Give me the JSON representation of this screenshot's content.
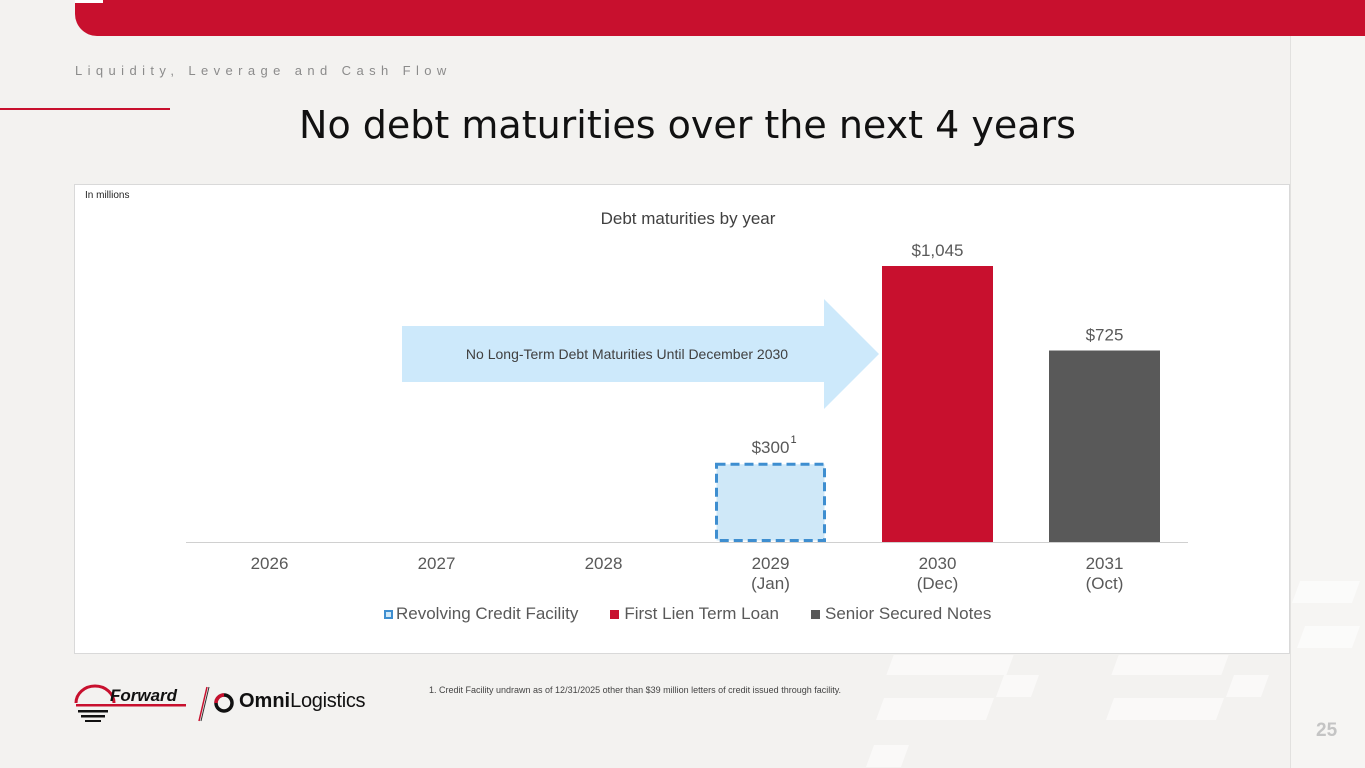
{
  "header": {
    "section_label": "Liquidity, Leverage and Cash Flow",
    "title": "No debt maturities over the next 4 years"
  },
  "colors": {
    "brand_red": "#c8102e",
    "dark_gray": "#595959",
    "revolver_fill": "#cfe8f8",
    "revolver_border": "#3e8ed0",
    "arrow_fill": "#cde9fb"
  },
  "units_note": "In millions",
  "chart_data": {
    "type": "bar",
    "title": "Debt maturities by year",
    "categories": [
      {
        "year": "2026",
        "sub": ""
      },
      {
        "year": "2027",
        "sub": ""
      },
      {
        "year": "2028",
        "sub": ""
      },
      {
        "year": "2029",
        "sub": "(Jan)"
      },
      {
        "year": "2030",
        "sub": "(Dec)"
      },
      {
        "year": "2031",
        "sub": "(Oct)"
      }
    ],
    "series": [
      {
        "name": "Revolving Credit Facility",
        "values": [
          0,
          0,
          0,
          300,
          0,
          0
        ],
        "color": "#cfe8f8",
        "style": "dashed"
      },
      {
        "name": "First Lien Term Loan",
        "values": [
          0,
          0,
          0,
          0,
          1045,
          0
        ],
        "color": "#c8102e",
        "style": "solid"
      },
      {
        "name": "Senior Secured Notes",
        "values": [
          0,
          0,
          0,
          0,
          0,
          725
        ],
        "color": "#595959",
        "style": "solid"
      }
    ],
    "data_labels": [
      {
        "category_index": 3,
        "text": "$300",
        "superscript": "1"
      },
      {
        "category_index": 4,
        "text": "$1,045"
      },
      {
        "category_index": 5,
        "text": "$725"
      }
    ],
    "annotation": "No Long-Term Debt Maturities Until December 2030",
    "ylim": [
      0,
      1045
    ],
    "grid": false,
    "legend_position": "bottom"
  },
  "footnote": "1.  Credit Facility undrawn as of 12/31/2025 other than $39 million letters of credit issued through facility.",
  "footer": {
    "logo_forward": "Forward",
    "logo_omni_bold": "Omni",
    "logo_omni_light": "Logistics",
    "page_number": "25"
  }
}
